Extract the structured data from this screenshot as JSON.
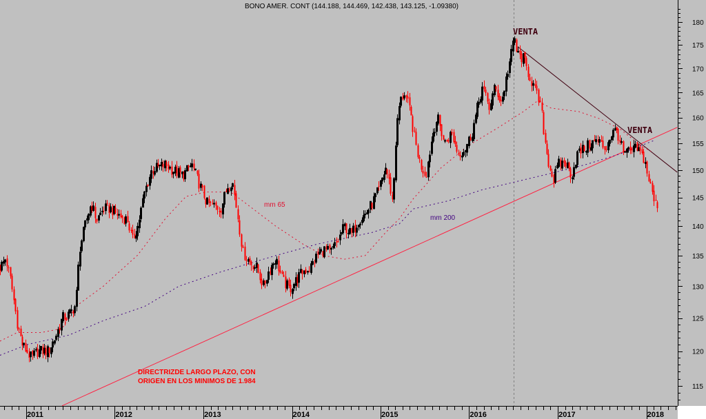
{
  "chart_data": {
    "type": "candlestick",
    "title": "BONO AMER. CONT (144.188, 144.469, 142.438, 143.125, -1.09380)",
    "y_scale": "log",
    "ylim": [
      112,
      184
    ],
    "y_ticks": [
      115,
      120,
      125,
      130,
      135,
      140,
      145,
      150,
      155,
      160,
      165,
      170,
      175,
      180
    ],
    "x_ticks": [
      "2011",
      "2012",
      "2013",
      "2014",
      "2015",
      "2016",
      "2017",
      "2018"
    ],
    "x_range": [
      "2010-09-15",
      "2018-05-08"
    ],
    "grid": false,
    "colors": {
      "background": "#c0c0c0",
      "down_candle": "#ff0000",
      "up_candle": "#000000",
      "mm65": "#e01030",
      "mm200": "#400080",
      "support_line": "#ff2040",
      "resistance_line": "#400010",
      "venta_text": "#400010",
      "note_text": "#ff0000"
    },
    "price_path": [
      [
        "2010-09-15",
        133
      ],
      [
        "2010-10-08",
        134.5
      ],
      [
        "2010-10-28",
        131
      ],
      [
        "2010-11-25",
        124
      ],
      [
        "2010-12-15",
        121
      ],
      [
        "2011-01-21",
        119
      ],
      [
        "2011-02-18",
        120
      ],
      [
        "2011-04-02",
        120
      ],
      [
        "2011-04-30",
        122
      ],
      [
        "2011-05-29",
        125
      ],
      [
        "2011-06-26",
        125.5
      ],
      [
        "2011-07-24",
        127
      ],
      [
        "2011-08-08",
        136
      ],
      [
        "2011-09-05",
        141
      ],
      [
        "2011-09-25",
        144
      ],
      [
        "2011-10-18",
        141
      ],
      [
        "2011-11-15",
        143
      ],
      [
        "2011-12-13",
        143
      ],
      [
        "2012-01-11",
        142
      ],
      [
        "2012-02-22",
        141
      ],
      [
        "2012-03-13",
        137.5
      ],
      [
        "2012-04-05",
        140
      ],
      [
        "2012-05-03",
        146
      ],
      [
        "2012-06-01",
        150
      ],
      [
        "2012-06-29",
        150.5
      ],
      [
        "2012-07-28",
        151
      ],
      [
        "2012-08-25",
        150
      ],
      [
        "2012-10-07",
        149
      ],
      [
        "2012-11-13",
        151
      ],
      [
        "2012-12-17",
        147
      ],
      [
        "2013-01-14",
        144
      ],
      [
        "2013-02-11",
        143.5
      ],
      [
        "2013-03-12",
        143
      ],
      [
        "2013-04-09",
        147
      ],
      [
        "2013-04-29",
        148
      ],
      [
        "2013-05-22",
        141.5
      ],
      [
        "2013-06-11",
        135.5
      ],
      [
        "2013-07-09",
        134
      ],
      [
        "2013-08-07",
        133
      ],
      [
        "2013-09-04",
        130
      ],
      [
        "2013-09-27",
        132.5
      ],
      [
        "2013-10-25",
        134.5
      ],
      [
        "2013-11-22",
        131
      ],
      [
        "2013-12-21",
        129.5
      ],
      [
        "2014-01-18",
        131
      ],
      [
        "2014-02-16",
        132.5
      ],
      [
        "2014-03-16",
        133
      ],
      [
        "2014-04-13",
        135
      ],
      [
        "2014-05-12",
        136
      ],
      [
        "2014-06-09",
        135.5
      ],
      [
        "2014-07-08",
        137.5
      ],
      [
        "2014-08-05",
        140
      ],
      [
        "2014-09-02",
        138.5
      ],
      [
        "2014-10-01",
        141
      ],
      [
        "2014-10-29",
        142
      ],
      [
        "2014-11-27",
        144
      ],
      [
        "2014-12-25",
        146.5
      ],
      [
        "2015-01-22",
        150.5
      ],
      [
        "2015-02-06",
        147.5
      ],
      [
        "2015-02-20",
        144
      ],
      [
        "2015-03-06",
        157
      ],
      [
        "2015-03-20",
        163
      ],
      [
        "2015-04-09",
        165
      ],
      [
        "2015-05-02",
        161
      ],
      [
        "2015-05-25",
        155
      ],
      [
        "2015-06-13",
        151
      ],
      [
        "2015-07-06",
        149
      ],
      [
        "2015-08-04",
        157
      ],
      [
        "2015-08-23",
        160
      ],
      [
        "2015-09-21",
        155
      ],
      [
        "2015-10-19",
        157
      ],
      [
        "2015-11-17",
        153
      ],
      [
        "2015-12-15",
        154
      ],
      [
        "2016-01-12",
        157
      ],
      [
        "2016-02-04",
        162
      ],
      [
        "2016-02-24",
        166
      ],
      [
        "2016-03-23",
        162
      ],
      [
        "2016-04-15",
        166
      ],
      [
        "2016-05-14",
        163
      ],
      [
        "2016-06-02",
        168
      ],
      [
        "2016-06-22",
        173
      ],
      [
        "2016-07-04",
        177
      ],
      [
        "2016-07-15",
        173
      ],
      [
        "2016-08-12",
        172
      ],
      [
        "2016-09-04",
        168.5
      ],
      [
        "2016-09-24",
        166
      ],
      [
        "2016-10-22",
        162
      ],
      [
        "2016-11-06",
        156
      ],
      [
        "2016-11-20",
        152
      ],
      [
        "2016-12-13",
        148
      ],
      [
        "2017-01-02",
        151
      ],
      [
        "2017-01-30",
        151.5
      ],
      [
        "2017-02-27",
        149
      ],
      [
        "2017-03-22",
        153
      ],
      [
        "2017-04-19",
        154
      ],
      [
        "2017-05-18",
        155
      ],
      [
        "2017-06-15",
        155.5
      ],
      [
        "2017-07-14",
        154
      ],
      [
        "2017-08-11",
        157
      ],
      [
        "2017-08-31",
        157.5
      ],
      [
        "2017-09-28",
        153
      ],
      [
        "2017-10-27",
        153.5
      ],
      [
        "2017-11-24",
        154
      ],
      [
        "2017-12-23",
        152
      ],
      [
        "2018-01-11",
        148
      ],
      [
        "2018-02-03",
        144
      ],
      [
        "2018-02-17",
        143.125
      ]
    ],
    "mm65": {
      "label": "mm 65",
      "points": [
        [
          "2010-09-15",
          121.5
        ],
        [
          "2010-11-25",
          122.8
        ],
        [
          "2011-03-04",
          122.8
        ],
        [
          "2011-05-29",
          123.4
        ],
        [
          "2011-07-24",
          126.8
        ],
        [
          "2011-11-15",
          130
        ],
        [
          "2012-04-05",
          135.1
        ],
        [
          "2012-07-28",
          141.3
        ],
        [
          "2012-10-21",
          145.2
        ],
        [
          "2013-01-14",
          146
        ],
        [
          "2013-04-23",
          146
        ],
        [
          "2013-07-09",
          143.5
        ],
        [
          "2013-10-25",
          140
        ],
        [
          "2014-02-16",
          136.9
        ],
        [
          "2014-05-12",
          135
        ],
        [
          "2014-08-05",
          134.4
        ],
        [
          "2014-10-29",
          135
        ],
        [
          "2015-01-22",
          138.9
        ],
        [
          "2015-03-20",
          141.3
        ],
        [
          "2015-05-16",
          144.8
        ],
        [
          "2015-09-07",
          150.4
        ],
        [
          "2015-12-29",
          154.6
        ],
        [
          "2016-04-21",
          157.8
        ],
        [
          "2016-08-12",
          161.2
        ],
        [
          "2016-10-08",
          163.3
        ],
        [
          "2016-12-04",
          161.9
        ],
        [
          "2017-03-28",
          161.2
        ],
        [
          "2017-06-21",
          159.8
        ],
        [
          "2017-09-14",
          157.8
        ],
        [
          "2017-12-08",
          154.6
        ],
        [
          "2018-01-20",
          153.5
        ]
      ]
    },
    "mm200": {
      "label": "mm 200",
      "points": [
        [
          "2010-09-15",
          119.4
        ],
        [
          "2011-01-06",
          121
        ],
        [
          "2011-06-26",
          122.4
        ],
        [
          "2011-11-15",
          124.6
        ],
        [
          "2012-05-03",
          126.8
        ],
        [
          "2012-09-22",
          130
        ],
        [
          "2013-03-12",
          132.3
        ],
        [
          "2013-10-25",
          135
        ],
        [
          "2014-04-13",
          136.9
        ],
        [
          "2014-11-27",
          138.9
        ],
        [
          "2015-03-20",
          140.4
        ],
        [
          "2015-05-16",
          143
        ],
        [
          "2015-10-05",
          144.4
        ],
        [
          "2016-02-24",
          146.4
        ],
        [
          "2016-06-17",
          147.6
        ],
        [
          "2016-12-04",
          149.4
        ],
        [
          "2017-04-25",
          151
        ],
        [
          "2017-09-14",
          153
        ],
        [
          "2018-02-03",
          155.6
        ]
      ]
    },
    "trendlines": [
      {
        "name": "directriz-largo-plazo",
        "from": [
          "2011-05-29",
          112.2
        ],
        "to": [
          "2018-05-08",
          158.1
        ]
      },
      {
        "name": "bajista",
        "from": [
          "2016-07-20",
          174.6
        ],
        "to": [
          "2018-05-08",
          149.6
        ]
      }
    ],
    "vertical_marker": "2016-07-04",
    "annotations": {
      "venta_1": "VENTA",
      "venta_2": "VENTA",
      "note_line1": "DIRECTRIZDE LARGO PLAZO, CON",
      "note_line2": "ORIGEN EN LOS MINIMOS DE 1.984"
    }
  }
}
